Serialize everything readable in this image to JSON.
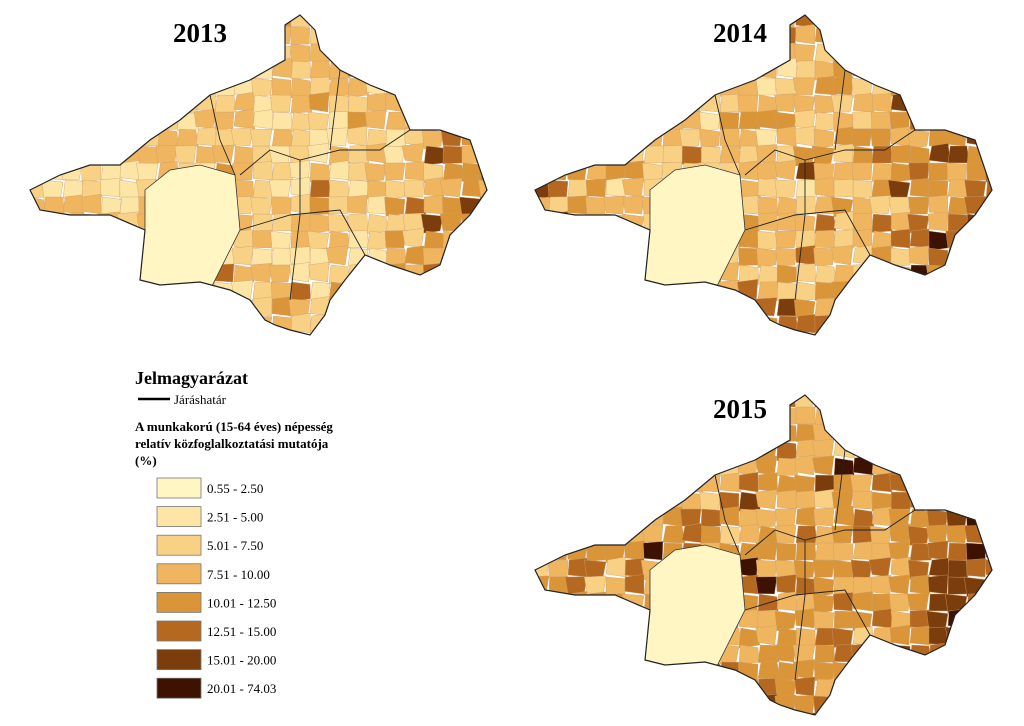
{
  "maps": [
    {
      "year": "2013"
    },
    {
      "year": "2014"
    },
    {
      "year": "2015"
    }
  ],
  "legend": {
    "title": "Jelmagyarázat",
    "boundary_label": "Járáshatár",
    "subtitle": [
      "A munkakorú (15-64 éves) népesség",
      "relatív közfoglalkoztatási mutatója",
      "(%)"
    ],
    "classes": [
      {
        "label": "0.55 - 2.50",
        "color": "#fff6c4"
      },
      {
        "label": "2.51 - 5.00",
        "color": "#fde6a5"
      },
      {
        "label": "5.01 - 7.50",
        "color": "#f9d185"
      },
      {
        "label": "7.51 - 10.00",
        "color": "#f0b55f"
      },
      {
        "label": "10.01 - 12.50",
        "color": "#d99537"
      },
      {
        "label": "12.51 - 15.00",
        "color": "#b5681f"
      },
      {
        "label": "15.01 - 20.00",
        "color": "#7c3d0c"
      },
      {
        "label": "20.01 - 74.03",
        "color": "#3d1200"
      }
    ]
  }
}
